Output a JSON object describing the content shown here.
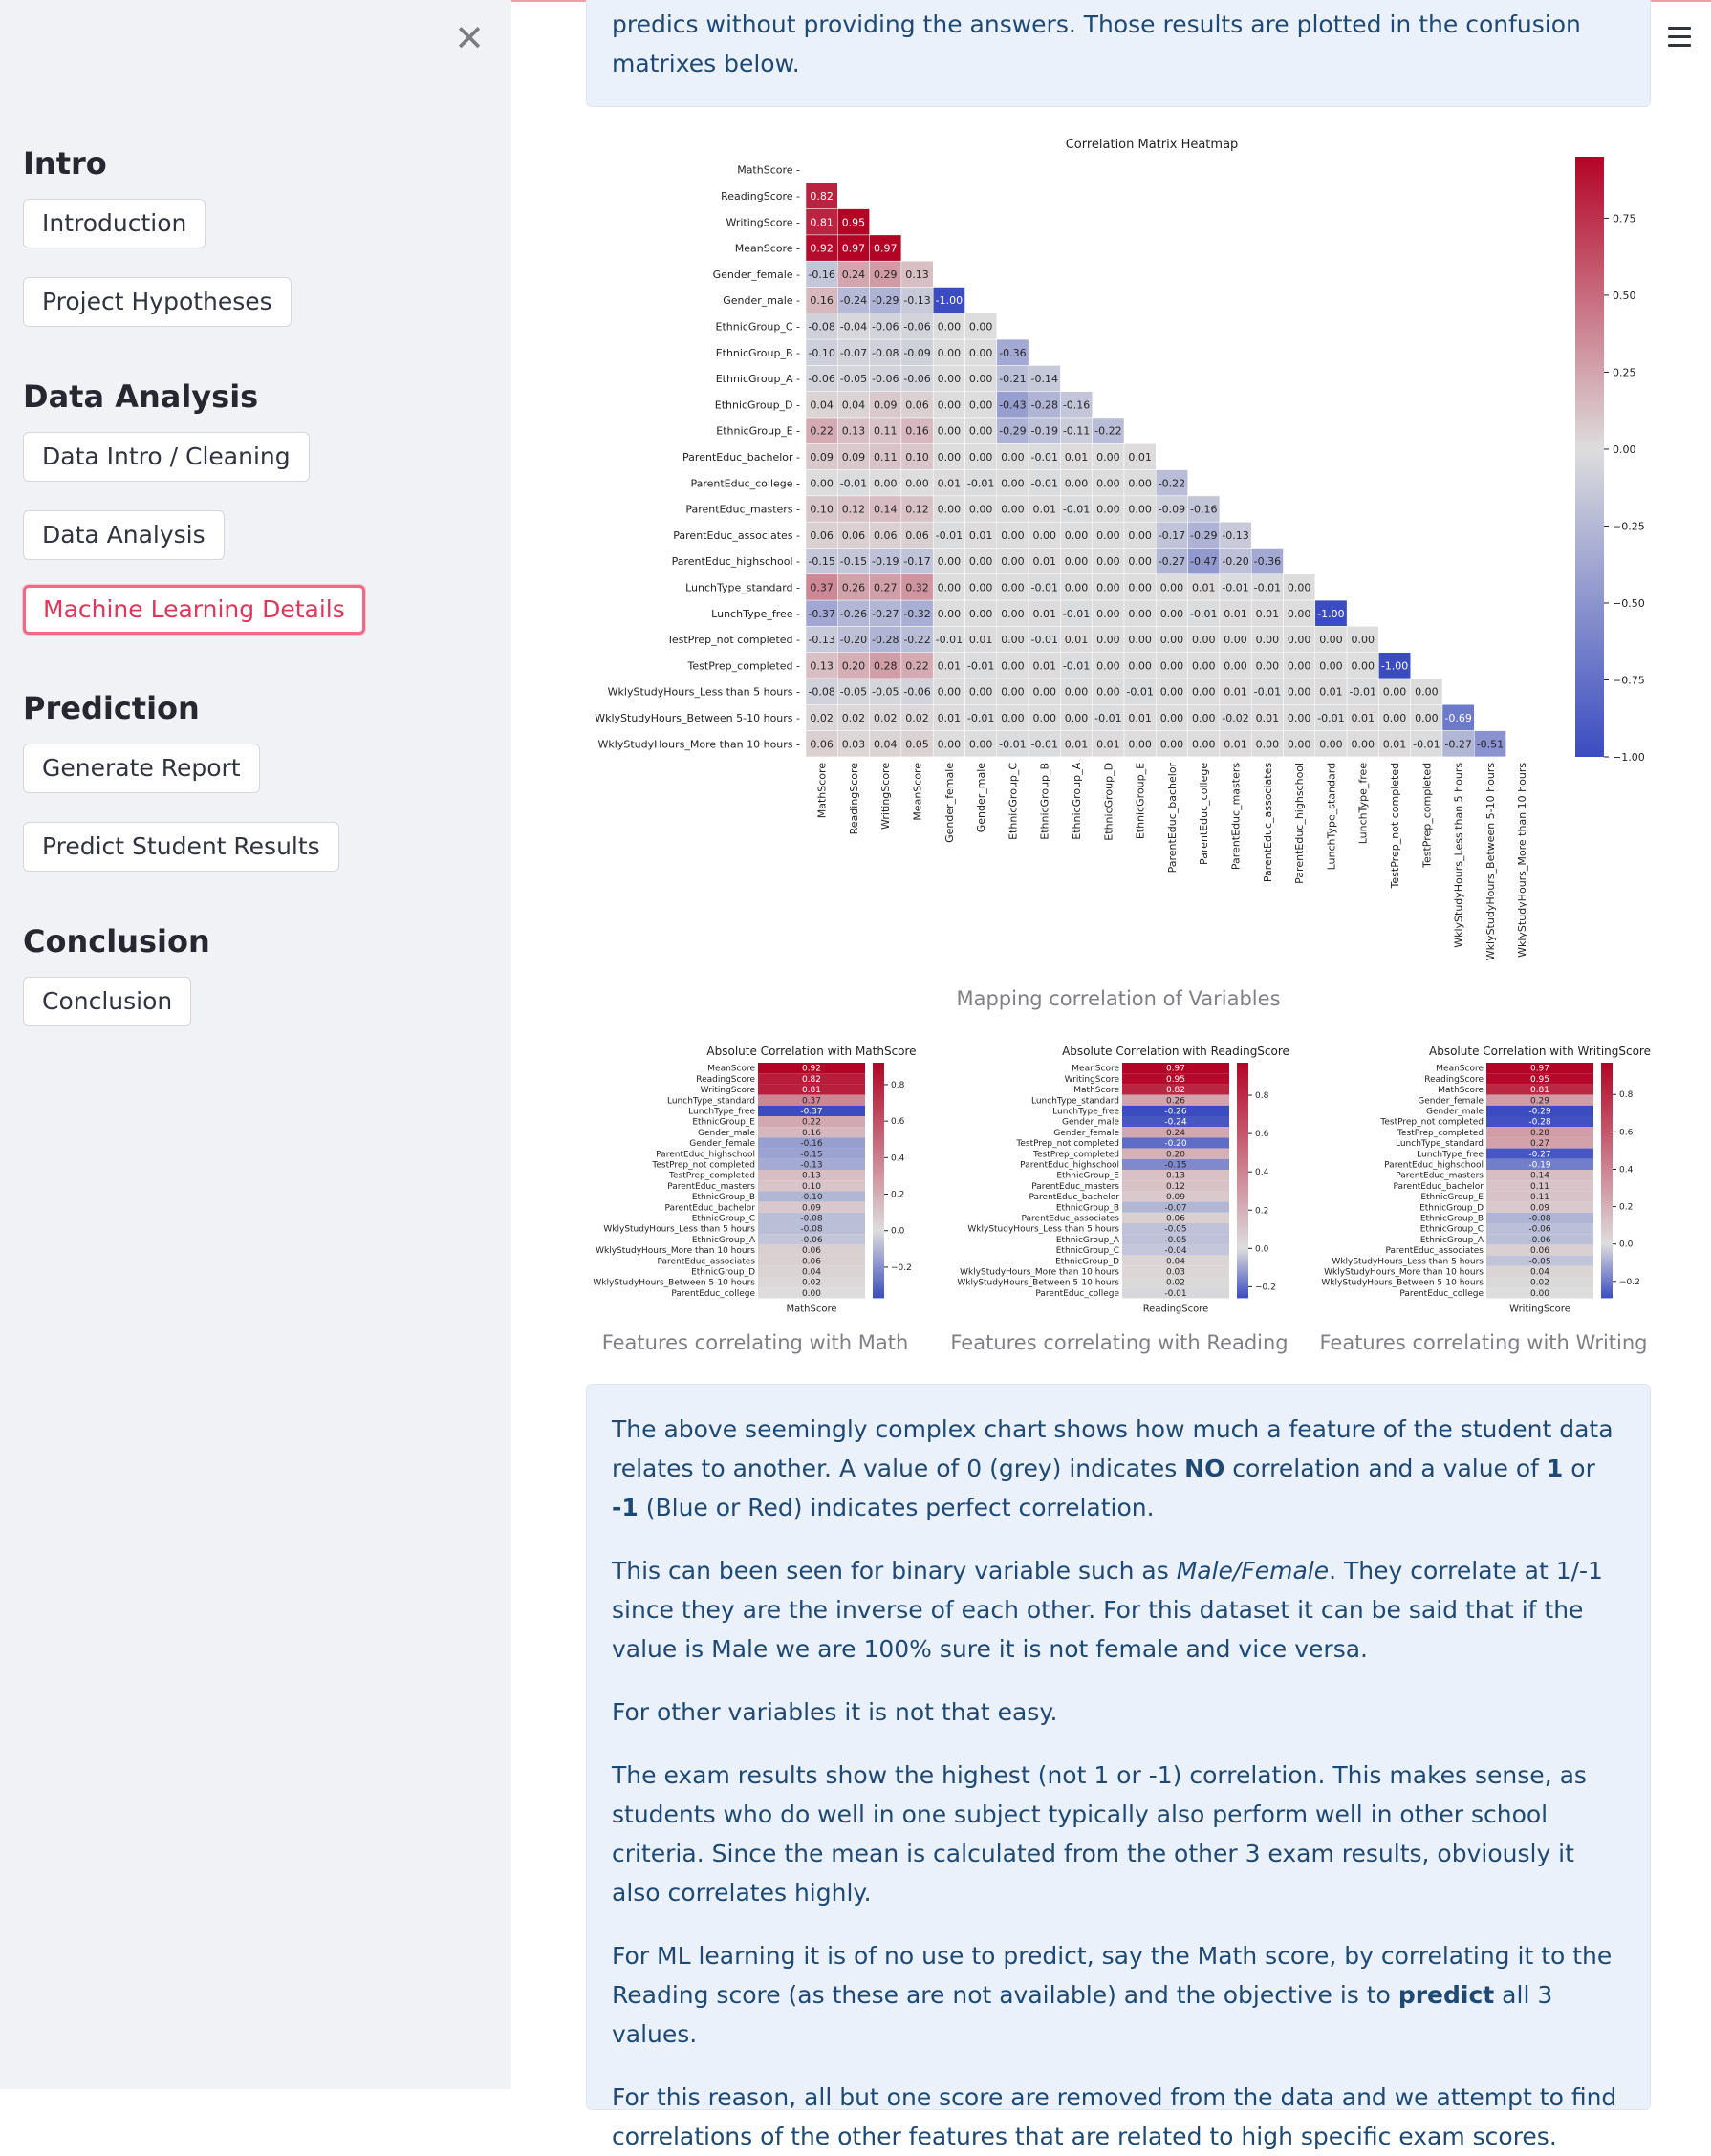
{
  "sidebar": {
    "close_icon": "close-icon",
    "sections": [
      {
        "title": "Intro",
        "buttons": [
          "Introduction",
          "Project Hypotheses"
        ]
      },
      {
        "title": "Data Analysis",
        "buttons": [
          "Data Intro / Cleaning",
          "Data Analysis",
          "Machine Learning Details"
        ]
      },
      {
        "title": "Prediction",
        "buttons": [
          "Generate Report",
          "Predict Student Results"
        ]
      },
      {
        "title": "Conclusion",
        "buttons": [
          "Conclusion"
        ]
      }
    ],
    "active_button": "Machine Learning Details",
    "accent_color": "#e0365c"
  },
  "header": {
    "menu_icon": "hamburger-menu-icon"
  },
  "top_info": {
    "text": "predics without providing the answers. Those results are plotted in the confusion matrixes below."
  },
  "heatmap": {
    "caption": "Mapping correlation of Variables",
    "colors": {
      "low": "#3b4cc0",
      "mid": "#dddddd",
      "high": "#b40426"
    }
  },
  "small_charts": [
    {
      "caption": "Features correlating with Math"
    },
    {
      "caption": "Features correlating with Reading"
    },
    {
      "caption": "Features correlating with Writing"
    }
  ],
  "explanation": {
    "p1": {
      "t1": "The above seemingly complex chart shows how much a feature of the student data relates to another. A value of 0 (grey) indicates ",
      "b1": "NO",
      "t2": " correlation and a value of ",
      "b2": "1",
      "t3": " or ",
      "b3": "-1",
      "t4": " (Blue or Red) indicates perfect correlation."
    },
    "p2": {
      "t1": "This can been seen for binary variable such as ",
      "i1": "Male/Female",
      "t2": ". They correlate at 1/-1 since they are the inverse of each other. For this dataset it can be said that if the value is Male we are 100% sure it is not female and vice versa."
    },
    "p3": "For other variables it is not that easy.",
    "p4": "The exam results show the highest (not 1 or -1) correlation. This makes sense, as students who do well in one subject typically also perform well in other school criteria. Since the mean is calculated from the other 3 exam results, obviously it also correlates highly.",
    "p5": {
      "t1": "For ML learning it is of no use to predict, say the Math score, by correlating it to the Reading score (as these are not available) and the objective is to ",
      "b1": "predict",
      "t2": " all 3 values."
    },
    "p6": "For this reason, all but one score are removed from the data and we attempt to find correlations of the other features that are related to high specific exam scores."
  },
  "chart_data": [
    {
      "type": "heatmap",
      "title": "Correlation Matrix Heatmap",
      "variables": [
        "MathScore",
        "ReadingScore",
        "WritingScore",
        "MeanScore",
        "Gender_female",
        "Gender_male",
        "EthnicGroup_C",
        "EthnicGroup_B",
        "EthnicGroup_A",
        "EthnicGroup_D",
        "EthnicGroup_E",
        "ParentEduc_bachelor",
        "ParentEduc_college",
        "ParentEduc_masters",
        "ParentEduc_associates",
        "ParentEduc_highschool",
        "LunchType_standard",
        "LunchType_free",
        "TestPrep_not completed",
        "TestPrep_completed",
        "WklyStudyHours_Less than 5 hours",
        "WklyStudyHours_Between 5-10 hours",
        "WklyStudyHours_More than 10 hours"
      ],
      "lower_triangle": [
        [],
        [
          0.82
        ],
        [
          0.81,
          0.95
        ],
        [
          0.92,
          0.97,
          0.97
        ],
        [
          -0.16,
          0.24,
          0.29,
          0.13
        ],
        [
          0.16,
          -0.24,
          -0.29,
          -0.13,
          -1.0
        ],
        [
          -0.08,
          -0.04,
          -0.06,
          -0.06,
          -0.0,
          0.0
        ],
        [
          -0.1,
          -0.07,
          -0.08,
          -0.09,
          0.0,
          -0.0,
          -0.36
        ],
        [
          -0.06,
          -0.05,
          -0.06,
          -0.06,
          0.0,
          -0.0,
          -0.21,
          -0.14
        ],
        [
          0.04,
          0.04,
          0.09,
          0.06,
          -0.0,
          0.0,
          -0.43,
          -0.28,
          -0.16
        ],
        [
          0.22,
          0.13,
          0.11,
          0.16,
          0.0,
          -0.0,
          -0.29,
          -0.19,
          -0.11,
          -0.22
        ],
        [
          0.09,
          0.09,
          0.11,
          0.1,
          -0.0,
          0.0,
          -0.0,
          -0.01,
          0.01,
          0.0,
          0.01
        ],
        [
          -0.0,
          -0.01,
          0.0,
          -0.0,
          0.01,
          -0.01,
          0.0,
          -0.01,
          0.0,
          0.0,
          0.0,
          -0.22
        ],
        [
          0.1,
          0.12,
          0.14,
          0.12,
          0.0,
          -0.0,
          0.0,
          0.01,
          -0.01,
          0.0,
          -0.0,
          -0.09,
          -0.16
        ],
        [
          0.06,
          0.06,
          0.06,
          0.06,
          -0.01,
          0.01,
          0.0,
          0.0,
          -0.0,
          -0.0,
          -0.0,
          -0.17,
          -0.29,
          -0.13
        ],
        [
          -0.15,
          -0.15,
          -0.19,
          -0.17,
          -0.0,
          0.0,
          -0.0,
          0.01,
          0.0,
          -0.0,
          -0.0,
          -0.27,
          -0.47,
          -0.2,
          -0.36
        ],
        [
          0.37,
          0.26,
          0.27,
          0.32,
          0.0,
          -0.0,
          0.0,
          -0.01,
          0.0,
          -0.0,
          -0.0,
          -0.0,
          0.01,
          -0.01,
          -0.01,
          0.0
        ],
        [
          -0.37,
          -0.26,
          -0.27,
          -0.32,
          -0.0,
          0.0,
          -0.0,
          0.01,
          -0.01,
          -0.0,
          0.0,
          0.0,
          -0.01,
          0.01,
          0.01,
          -0.0,
          -1.0
        ],
        [
          -0.13,
          -0.2,
          -0.28,
          -0.22,
          -0.01,
          0.01,
          -0.0,
          -0.01,
          0.01,
          0.0,
          -0.0,
          -0.0,
          -0.0,
          0.0,
          0.0,
          0.0,
          0.0,
          -0.0
        ],
        [
          0.13,
          0.2,
          0.28,
          0.22,
          0.01,
          -0.01,
          0.0,
          0.01,
          -0.01,
          -0.0,
          0.0,
          0.0,
          0.0,
          -0.0,
          -0.0,
          -0.0,
          -0.0,
          0.0,
          -1.0
        ],
        [
          -0.08,
          -0.05,
          -0.05,
          -0.06,
          -0.0,
          0.0,
          0.0,
          0.0,
          -0.0,
          -0.0,
          -0.01,
          0.0,
          0.0,
          0.01,
          -0.01,
          -0.0,
          0.01,
          -0.01,
          -0.0,
          0.0
        ],
        [
          0.02,
          0.02,
          0.02,
          0.02,
          0.01,
          -0.01,
          0.0,
          0.0,
          -0.0,
          -0.01,
          0.01,
          0.0,
          0.0,
          -0.02,
          0.01,
          0.0,
          -0.01,
          0.01,
          -0.0,
          0.0,
          -0.69
        ],
        [
          0.06,
          0.03,
          0.04,
          0.05,
          -0.0,
          0.0,
          -0.01,
          -0.01,
          0.01,
          0.01,
          -0.0,
          -0.0,
          -0.0,
          0.01,
          0.0,
          0.0,
          0.0,
          -0.0,
          0.01,
          -0.01,
          -0.27,
          -0.51
        ]
      ],
      "colorbar_ticks": [
        0.75,
        0.5,
        0.25,
        0.0,
        -0.25,
        -0.5,
        -0.75,
        -1.0
      ],
      "colorbar_tick_labels": [
        "0.75",
        "0.50",
        "0.25",
        "0.00",
        "−0.25",
        "−0.50",
        "−0.75",
        "−1.00"
      ],
      "vlim": [
        -1.0,
        0.95
      ]
    },
    {
      "type": "heatmap",
      "title": "Absolute Correlation with MathScore",
      "xlabel": "MathScore",
      "features": [
        "MeanScore",
        "ReadingScore",
        "WritingScore",
        "LunchType_standard",
        "LunchType_free",
        "EthnicGroup_E",
        "Gender_male",
        "Gender_female",
        "ParentEduc_highschool",
        "TestPrep_not completed",
        "TestPrep_completed",
        "ParentEduc_masters",
        "EthnicGroup_B",
        "ParentEduc_bachelor",
        "EthnicGroup_C",
        "WklyStudyHours_Less than 5 hours",
        "EthnicGroup_A",
        "WklyStudyHours_More than 10 hours",
        "ParentEduc_associates",
        "EthnicGroup_D",
        "WklyStudyHours_Between 5-10 hours",
        "ParentEduc_college"
      ],
      "values": [
        0.92,
        0.82,
        0.81,
        0.37,
        -0.37,
        0.22,
        0.16,
        -0.16,
        -0.15,
        -0.13,
        0.13,
        0.1,
        -0.1,
        0.09,
        -0.08,
        -0.08,
        -0.06,
        0.06,
        0.06,
        0.04,
        0.02,
        -0.0
      ],
      "colorbar_ticks": [
        0.8,
        0.6,
        0.4,
        0.2,
        0.0,
        -0.2
      ],
      "colorbar_tick_labels": [
        "0.8",
        "0.6",
        "0.4",
        "0.2",
        "0.0",
        "−0.2"
      ],
      "vlim": [
        -0.37,
        0.92
      ]
    },
    {
      "type": "heatmap",
      "title": "Absolute Correlation with ReadingScore",
      "xlabel": "ReadingScore",
      "features": [
        "MeanScore",
        "WritingScore",
        "MathScore",
        "LunchType_standard",
        "LunchType_free",
        "Gender_male",
        "Gender_female",
        "TestPrep_not completed",
        "TestPrep_completed",
        "ParentEduc_highschool",
        "EthnicGroup_E",
        "ParentEduc_masters",
        "ParentEduc_bachelor",
        "EthnicGroup_B",
        "ParentEduc_associates",
        "WklyStudyHours_Less than 5 hours",
        "EthnicGroup_A",
        "EthnicGroup_C",
        "EthnicGroup_D",
        "WklyStudyHours_More than 10 hours",
        "WklyStudyHours_Between 5-10 hours",
        "ParentEduc_college"
      ],
      "values": [
        0.97,
        0.95,
        0.82,
        0.26,
        -0.26,
        -0.24,
        0.24,
        -0.2,
        0.2,
        -0.15,
        0.13,
        0.12,
        0.09,
        -0.07,
        0.06,
        -0.05,
        -0.05,
        -0.04,
        0.04,
        0.03,
        0.02,
        -0.01
      ],
      "colorbar_ticks": [
        0.8,
        0.6,
        0.4,
        0.2,
        0.0,
        -0.2
      ],
      "colorbar_tick_labels": [
        "0.8",
        "0.6",
        "0.4",
        "0.2",
        "0.0",
        "−0.2"
      ],
      "vlim": [
        -0.26,
        0.97
      ]
    },
    {
      "type": "heatmap",
      "title": "Absolute Correlation with WritingScore",
      "xlabel": "WritingScore",
      "features": [
        "MeanScore",
        "ReadingScore",
        "MathScore",
        "Gender_female",
        "Gender_male",
        "TestPrep_not completed",
        "TestPrep_completed",
        "LunchType_standard",
        "LunchType_free",
        "ParentEduc_highschool",
        "ParentEduc_masters",
        "ParentEduc_bachelor",
        "EthnicGroup_E",
        "EthnicGroup_D",
        "EthnicGroup_B",
        "EthnicGroup_C",
        "EthnicGroup_A",
        "ParentEduc_associates",
        "WklyStudyHours_Less than 5 hours",
        "WklyStudyHours_More than 10 hours",
        "WklyStudyHours_Between 5-10 hours",
        "ParentEduc_college"
      ],
      "values": [
        0.97,
        0.95,
        0.81,
        0.29,
        -0.29,
        -0.28,
        0.28,
        0.27,
        -0.27,
        -0.19,
        0.14,
        0.11,
        0.11,
        0.09,
        -0.08,
        -0.06,
        -0.06,
        0.06,
        -0.05,
        0.04,
        0.02,
        0.0
      ],
      "colorbar_ticks": [
        0.8,
        0.6,
        0.4,
        0.2,
        0.0,
        -0.2
      ],
      "colorbar_tick_labels": [
        "0.8",
        "0.6",
        "0.4",
        "0.2",
        "0.0",
        "−0.2"
      ],
      "vlim": [
        -0.29,
        0.97
      ]
    }
  ]
}
